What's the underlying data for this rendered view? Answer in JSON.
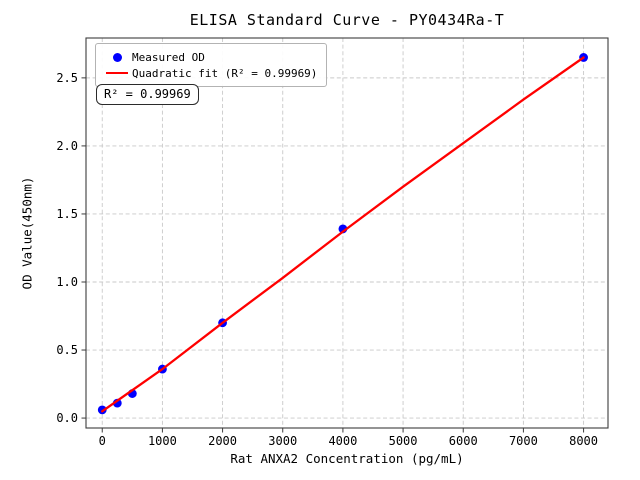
{
  "title": "ELISA Standard Curve - PY0434Ra-T",
  "annotation": {
    "text": "R² = 0.99969"
  },
  "legend": {
    "items": [
      {
        "label": "Measured OD",
        "marker": "dot",
        "color": "#0000ff"
      },
      {
        "label": "Quadratic fit (R² = 0.99969)",
        "marker": "line",
        "color": "#ff0000"
      }
    ]
  },
  "colors": {
    "marker": "#0000ff",
    "fit_line": "#ff0000",
    "grid": "#c9c9c9",
    "spine": "#3c3c3c",
    "background": "#ffffff",
    "text": "#000000"
  },
  "chart_data": {
    "type": "scatter",
    "title": "ELISA Standard Curve - PY0434Ra-T",
    "xlabel": "Rat ANXA2 Concentration (pg/mL)",
    "ylabel": "OD Value(450nm)",
    "xlim": [
      -270,
      8406
    ],
    "ylim": [
      -0.073,
      2.793
    ],
    "grid": true,
    "legend_position": "upper left",
    "x_ticks": [
      0,
      1000,
      2000,
      3000,
      4000,
      5000,
      6000,
      7000,
      8000
    ],
    "x_tick_labels": [
      "0",
      "1000",
      "2000",
      "3000",
      "4000",
      "5000",
      "6000",
      "7000",
      "8000"
    ],
    "y_ticks": [
      0.0,
      0.5,
      1.0,
      1.5,
      2.0,
      2.5
    ],
    "y_tick_labels": [
      "0.0",
      "0.5",
      "1.0",
      "1.5",
      "2.0",
      "2.5"
    ],
    "series": [
      {
        "name": "Measured OD",
        "type": "scatter",
        "color": "#0000ff",
        "x": [
          0,
          250,
          500,
          1000,
          2000,
          4000,
          8000
        ],
        "y": [
          0.06,
          0.11,
          0.18,
          0.36,
          0.7,
          1.39,
          2.65
        ]
      },
      {
        "name": "Quadratic fit",
        "type": "line",
        "color": "#ff0000",
        "r_squared": 0.99969,
        "x": [
          0,
          1000,
          2000,
          3000,
          4000,
          5000,
          6000,
          7000,
          8000
        ],
        "y": [
          0.05,
          0.36,
          0.7,
          1.03,
          1.37,
          1.7,
          2.02,
          2.34,
          2.65
        ]
      }
    ]
  }
}
